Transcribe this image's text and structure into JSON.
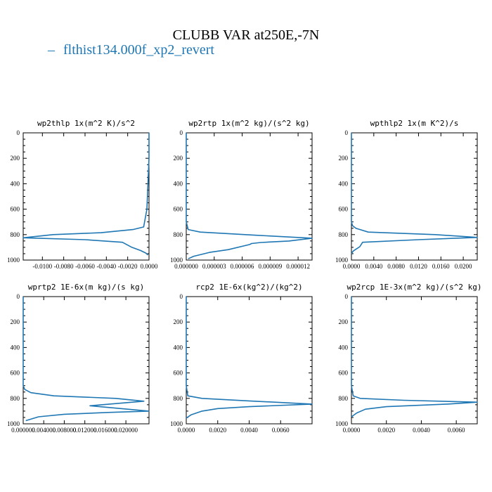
{
  "figure": {
    "title": "CLUBB VAR at250E,-7N",
    "legend_label": "flthist134.000f_xp2_revert",
    "series_color": "#1f77b4"
  },
  "chart_data": [
    {
      "type": "line",
      "title": "wp2thlp  1x(m^2 K)/s^2",
      "ylim": [
        1000,
        0
      ],
      "xlim": [
        -0.0118,
        0.0
      ],
      "xticks": [
        "-0.0100",
        "-0.0080",
        "-0.0060",
        "-0.0040",
        "-0.0020",
        "0.0000"
      ],
      "yticks": [
        "0",
        "200",
        "400",
        "600",
        "800",
        "1000"
      ],
      "series": [
        {
          "x": [
            0,
            0,
            -0.0001,
            -0.0002,
            -0.0005,
            -0.0015,
            -0.0045,
            -0.009,
            -0.0118,
            -0.006,
            -0.0025,
            -0.0016,
            -0.0008,
            -0.0003,
            -0.0001
          ],
          "y": [
            0,
            200,
            400,
            600,
            740,
            760,
            785,
            800,
            825,
            840,
            860,
            900,
            925,
            945,
            960
          ]
        }
      ]
    },
    {
      "type": "line",
      "title": "wp2rtp  1x(m^2 kg)/(s^2 kg)",
      "ylim": [
        1000,
        0
      ],
      "xlim": [
        0,
        1.35e-05
      ],
      "xticks": [
        "0.000000",
        "0.000003",
        "0.000006",
        "0.000009",
        "0.000012"
      ],
      "yticks": [
        "0",
        "200",
        "400",
        "600",
        "800",
        "1000"
      ],
      "series": [
        {
          "x": [
            0,
            0,
            0,
            0,
            2e-07,
            1.5e-06,
            7.5e-06,
            1.35e-05,
            1.1e-05,
            8e-06,
            7e-06,
            6.8e-06,
            4.5e-06,
            2.5e-06,
            8e-07,
            2e-07
          ],
          "y": [
            0,
            200,
            400,
            700,
            760,
            780,
            805,
            828,
            850,
            862,
            870,
            878,
            918,
            940,
            970,
            990
          ]
        }
      ]
    },
    {
      "type": "line",
      "title": "wpthlp2  1x(m K^2)/s",
      "ylim": [
        1000,
        0
      ],
      "xlim": [
        0,
        0.0225
      ],
      "xticks": [
        "0.0000",
        "0.0040",
        "0.0080",
        "0.0120",
        "0.0160",
        "0.0200"
      ],
      "yticks": [
        "0",
        "200",
        "400",
        "600",
        "800",
        "1000"
      ],
      "series": [
        {
          "x": [
            0,
            0,
            0,
            0,
            0.0002,
            0.0008,
            0.003,
            0.015,
            0.0225,
            0.012,
            0.002,
            0.0015,
            0.0008,
            0.0003,
            0
          ],
          "y": [
            0,
            200,
            400,
            700,
            730,
            750,
            780,
            800,
            822,
            840,
            860,
            895,
            915,
            930,
            950
          ]
        }
      ]
    },
    {
      "type": "line",
      "title": "wprtp2  1E-6x(m kg)/(s kg)",
      "ylim": [
        1000,
        0
      ],
      "xlim": [
        0,
        0.0245
      ],
      "xticks": [
        "0.000000",
        "0.004000",
        "0.008000",
        "0.012000",
        "0.016000",
        "0.020000"
      ],
      "yticks": [
        "0",
        "200",
        "400",
        "600",
        "800",
        "1000"
      ],
      "series": [
        {
          "x": [
            0,
            0,
            0,
            0,
            0.0003,
            0.0015,
            0.006,
            0.018,
            0.0235,
            0.013,
            0.0245,
            0.017,
            0.008,
            0.003,
            0.0005
          ],
          "y": [
            0,
            200,
            400,
            700,
            730,
            755,
            780,
            800,
            822,
            858,
            900,
            910,
            925,
            945,
            975
          ]
        }
      ]
    },
    {
      "type": "line",
      "title": "rcp2  1E-6x(kg^2)/(kg^2)",
      "ylim": [
        1000,
        0
      ],
      "xlim": [
        0,
        0.008
      ],
      "xticks": [
        "0.0000",
        "0.0020",
        "0.0040",
        "0.0060"
      ],
      "yticks": [
        "0",
        "200",
        "400",
        "600",
        "800",
        "1000"
      ],
      "series": [
        {
          "x": [
            0,
            0,
            0,
            0,
            0.0001,
            0.001,
            0.004,
            0.008,
            0.004,
            0.002,
            0.001,
            0.0003,
            0
          ],
          "y": [
            0,
            200,
            400,
            700,
            780,
            800,
            820,
            845,
            865,
            880,
            900,
            930,
            955
          ]
        }
      ]
    },
    {
      "type": "line",
      "title": "wp2rcp  1E-3x(m^2 kg)/(s^2 kg)",
      "ylim": [
        1000,
        0
      ],
      "xlim": [
        0,
        0.0072
      ],
      "xticks": [
        "0.0000",
        "0.0020",
        "0.0040",
        "0.0060"
      ],
      "yticks": [
        "0",
        "200",
        "400",
        "600",
        "800",
        "1000"
      ],
      "series": [
        {
          "x": [
            0,
            0,
            0,
            0,
            0.0001,
            0.0005,
            0.003,
            0.0072,
            0.0055,
            0.002,
            0.0008,
            0.0003,
            0
          ],
          "y": [
            0,
            200,
            400,
            700,
            780,
            800,
            815,
            830,
            845,
            865,
            885,
            915,
            945
          ]
        }
      ]
    }
  ]
}
